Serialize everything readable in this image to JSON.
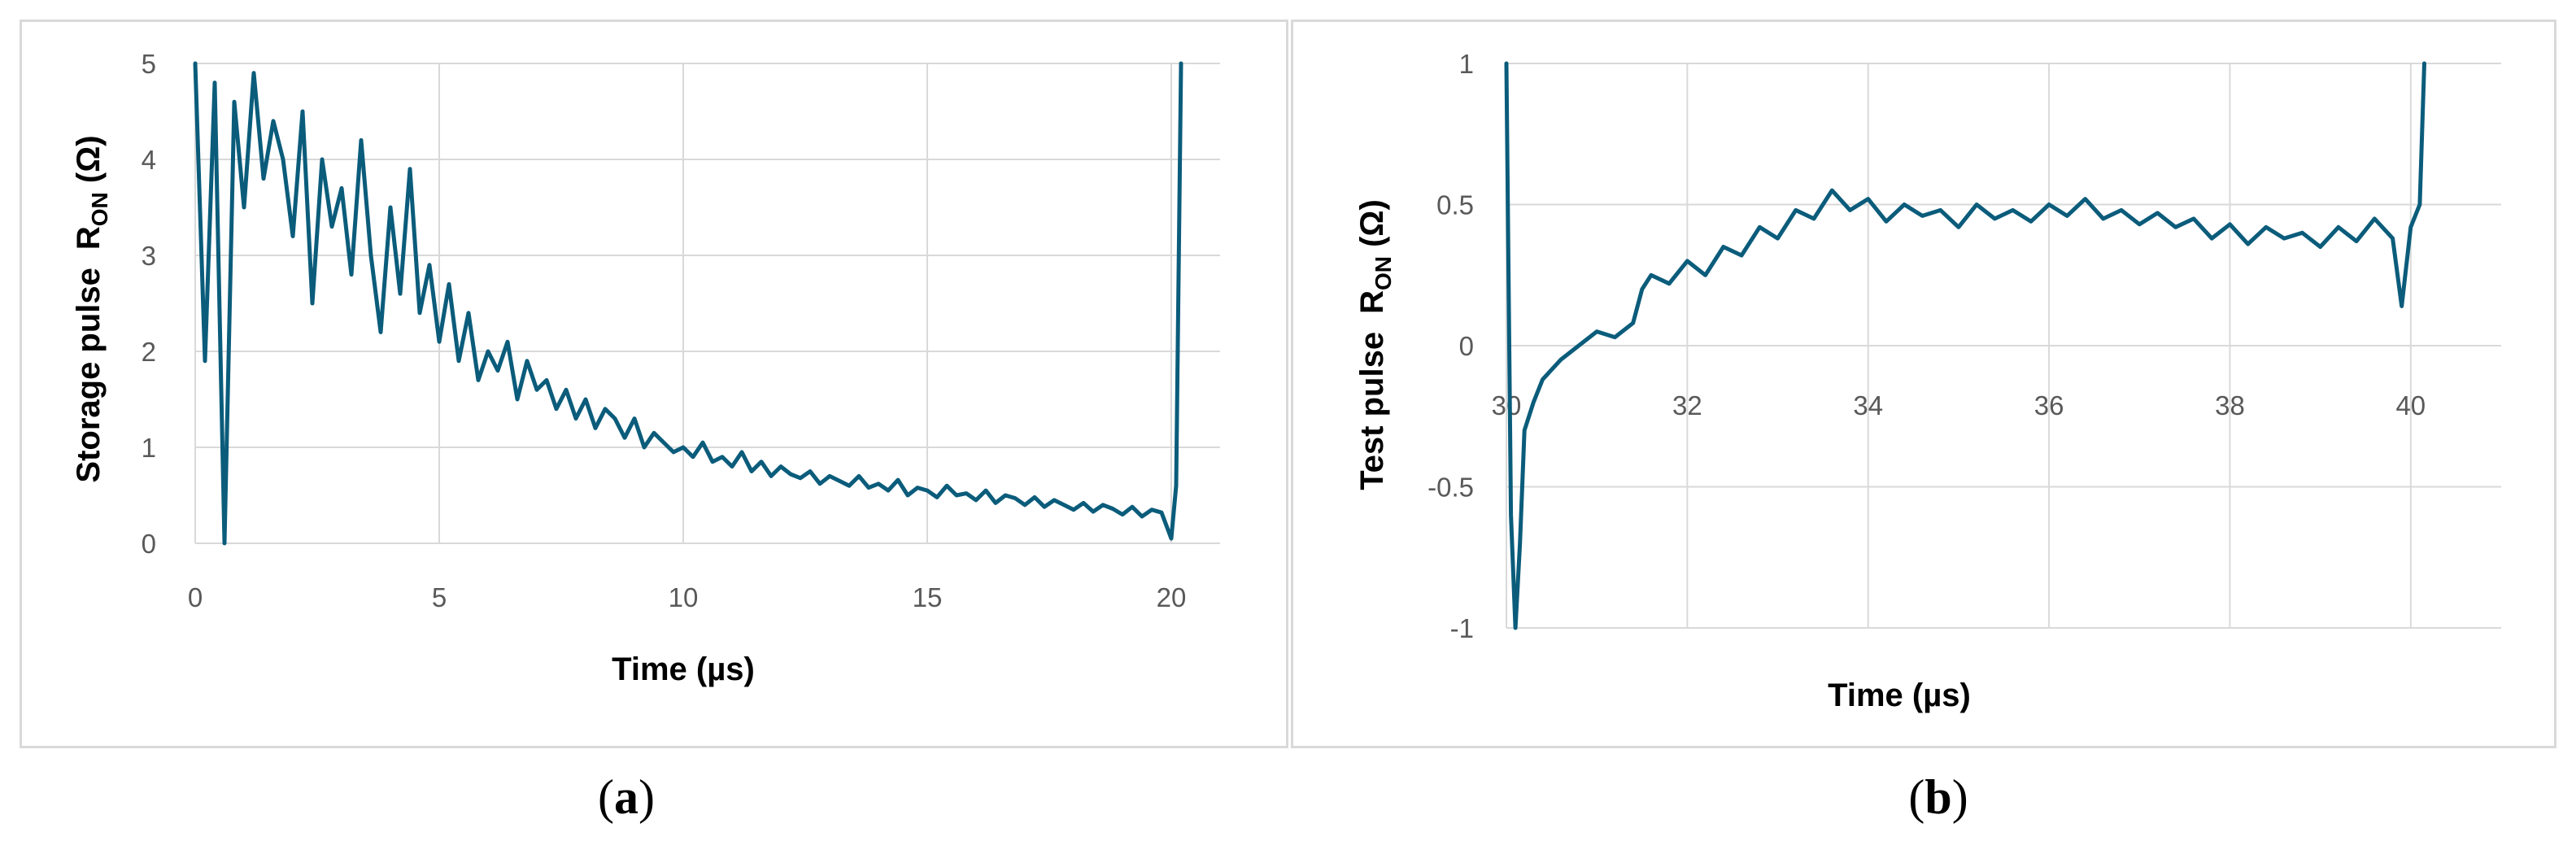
{
  "chart_data": [
    {
      "type": "line",
      "panel_label": "a",
      "xlabel": "Time (µs)",
      "ylabel_prefix": "Storage pulse",
      "ylabel_symbol": "R",
      "ylabel_subscript": "ON",
      "ylabel_unit": " (Ω)",
      "xlim": [
        0,
        21
      ],
      "ylim": [
        0,
        5
      ],
      "xticks": [
        0,
        5,
        10,
        15,
        20
      ],
      "yticks": [
        0,
        1,
        2,
        3,
        4,
        5
      ],
      "grid": true,
      "line_color": "#0b5c7b",
      "series": [
        {
          "x": [
            0.0,
            0.2,
            0.4,
            0.6,
            0.8,
            1.0,
            1.2,
            1.4,
            1.6,
            1.8,
            2.0,
            2.2,
            2.4,
            2.6,
            2.8,
            3.0,
            3.2,
            3.4,
            3.6,
            3.8,
            4.0,
            4.2,
            4.4,
            4.6,
            4.8,
            5.0,
            5.2,
            5.4,
            5.6,
            5.8,
            6.0,
            6.2,
            6.4,
            6.6,
            6.8,
            7.0,
            7.2,
            7.4,
            7.6,
            7.8,
            8.0,
            8.2,
            8.4,
            8.6,
            8.8,
            9.0,
            9.2,
            9.4,
            9.6,
            9.8,
            10.0,
            10.2,
            10.4,
            10.6,
            10.8,
            11.0,
            11.2,
            11.4,
            11.6,
            11.8,
            12.0,
            12.2,
            12.4,
            12.6,
            12.8,
            13.0,
            13.2,
            13.4,
            13.6,
            13.8,
            14.0,
            14.2,
            14.4,
            14.6,
            14.8,
            15.0,
            15.2,
            15.4,
            15.6,
            15.8,
            16.0,
            16.2,
            16.4,
            16.6,
            16.8,
            17.0,
            17.2,
            17.4,
            17.6,
            17.8,
            18.0,
            18.2,
            18.4,
            18.6,
            18.8,
            19.0,
            19.2,
            19.4,
            19.6,
            19.8,
            20.0,
            20.1,
            20.2
          ],
          "y": [
            5.0,
            1.9,
            4.8,
            0.0,
            4.6,
            3.5,
            4.9,
            3.8,
            4.4,
            4.0,
            3.2,
            4.5,
            2.5,
            4.0,
            3.3,
            3.7,
            2.8,
            4.2,
            3.0,
            2.2,
            3.5,
            2.6,
            3.9,
            2.4,
            2.9,
            2.1,
            2.7,
            1.9,
            2.4,
            1.7,
            2.0,
            1.8,
            2.1,
            1.5,
            1.9,
            1.6,
            1.7,
            1.4,
            1.6,
            1.3,
            1.5,
            1.2,
            1.4,
            1.3,
            1.1,
            1.3,
            1.0,
            1.15,
            1.05,
            0.95,
            1.0,
            0.9,
            1.05,
            0.85,
            0.9,
            0.8,
            0.95,
            0.75,
            0.85,
            0.7,
            0.8,
            0.72,
            0.68,
            0.75,
            0.62,
            0.7,
            0.65,
            0.6,
            0.7,
            0.58,
            0.62,
            0.55,
            0.66,
            0.5,
            0.58,
            0.55,
            0.48,
            0.6,
            0.5,
            0.52,
            0.45,
            0.55,
            0.42,
            0.5,
            0.47,
            0.4,
            0.48,
            0.38,
            0.45,
            0.4,
            0.35,
            0.42,
            0.33,
            0.4,
            0.36,
            0.3,
            0.38,
            0.28,
            0.35,
            0.32,
            0.05,
            0.6,
            5.0
          ]
        }
      ]
    },
    {
      "type": "line",
      "panel_label": "b",
      "xlabel": "Time (µs)",
      "ylabel_prefix": "Test pulse",
      "ylabel_symbol": "R",
      "ylabel_subscript": "ON",
      "ylabel_unit": " (Ω)",
      "xlim": [
        30,
        41
      ],
      "ylim": [
        -1,
        1
      ],
      "xticks": [
        30,
        32,
        34,
        36,
        38,
        40
      ],
      "yticks": [
        -1,
        -0.5,
        0,
        0.5,
        1
      ],
      "grid": true,
      "line_color": "#0b5c7b",
      "series": [
        {
          "x": [
            30.0,
            30.05,
            30.1,
            30.15,
            30.2,
            30.3,
            30.4,
            30.6,
            30.8,
            31.0,
            31.2,
            31.4,
            31.5,
            31.6,
            31.8,
            32.0,
            32.2,
            32.4,
            32.6,
            32.8,
            33.0,
            33.2,
            33.4,
            33.6,
            33.8,
            34.0,
            34.2,
            34.4,
            34.6,
            34.8,
            35.0,
            35.2,
            35.4,
            35.6,
            35.8,
            36.0,
            36.2,
            36.4,
            36.6,
            36.8,
            37.0,
            37.2,
            37.4,
            37.6,
            37.8,
            38.0,
            38.2,
            38.4,
            38.6,
            38.8,
            39.0,
            39.2,
            39.4,
            39.6,
            39.8,
            39.9,
            40.0,
            40.1,
            40.15
          ],
          "y": [
            1.0,
            -0.6,
            -1.0,
            -0.7,
            -0.3,
            -0.2,
            -0.12,
            -0.05,
            0.0,
            0.05,
            0.03,
            0.08,
            0.2,
            0.25,
            0.22,
            0.3,
            0.25,
            0.35,
            0.32,
            0.42,
            0.38,
            0.48,
            0.45,
            0.55,
            0.48,
            0.52,
            0.44,
            0.5,
            0.46,
            0.48,
            0.42,
            0.5,
            0.45,
            0.48,
            0.44,
            0.5,
            0.46,
            0.52,
            0.45,
            0.48,
            0.43,
            0.47,
            0.42,
            0.45,
            0.38,
            0.43,
            0.36,
            0.42,
            0.38,
            0.4,
            0.35,
            0.42,
            0.37,
            0.45,
            0.38,
            0.14,
            0.42,
            0.5,
            1.0
          ]
        }
      ]
    }
  ]
}
